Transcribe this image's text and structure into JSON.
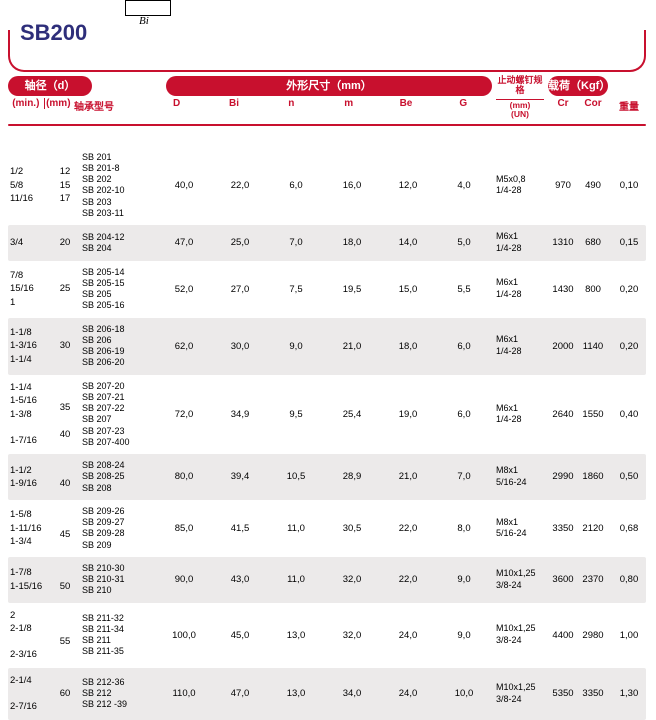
{
  "diagram_label": "Bi",
  "title": "SB200",
  "headers": {
    "shaft": "轴径（d）",
    "shaft_min": "(min.)",
    "shaft_mm": "(mm)",
    "bearing": "轴承型号",
    "outer_dim": "外形尺寸（mm）",
    "dims": [
      "D",
      "Bi",
      "n",
      "m",
      "Be",
      "G"
    ],
    "thread_top": "止动螺钉规格",
    "thread_mm": "(mm)",
    "thread_un": "(UN)",
    "load": "载荷（Kgf）",
    "load_cr": "Cr",
    "load_cor": "Cor",
    "weight": "重量"
  },
  "rows": [
    {
      "shaded": false,
      "min": [
        "1/2",
        "5/8",
        "11/16"
      ],
      "mm": [
        "12",
        "15",
        "17"
      ],
      "bearings": [
        "SB 201",
        "SB 201-8",
        "SB 202",
        "SB 202-10",
        "SB 203",
        "SB 203-11"
      ],
      "D": "40,0",
      "Bi": "22,0",
      "n": "6,0",
      "m": "16,0",
      "Be": "12,0",
      "G": "4,0",
      "thread": [
        "M5x0,8",
        "1/4-28"
      ],
      "Cr": "970",
      "Cor": "490",
      "wt": "0,10"
    },
    {
      "shaded": true,
      "min": [
        "3/4"
      ],
      "mm": [
        "20"
      ],
      "bearings": [
        "SB 204-12",
        "SB 204"
      ],
      "D": "47,0",
      "Bi": "25,0",
      "n": "7,0",
      "m": "18,0",
      "Be": "14,0",
      "G": "5,0",
      "thread": [
        "M6x1",
        "1/4-28"
      ],
      "Cr": "1310",
      "Cor": "680",
      "wt": "0,15"
    },
    {
      "shaded": false,
      "min": [
        "7/8",
        "15/16",
        "1"
      ],
      "mm": [
        "25"
      ],
      "bearings": [
        "SB 205-14",
        "SB 205-15",
        "SB 205",
        "SB 205-16"
      ],
      "D": "52,0",
      "Bi": "27,0",
      "n": "7,5",
      "m": "19,5",
      "Be": "15,0",
      "G": "5,5",
      "thread": [
        "M6x1",
        "1/4-28"
      ],
      "Cr": "1430",
      "Cor": "800",
      "wt": "0,20"
    },
    {
      "shaded": true,
      "min": [
        "1-1/8",
        "1-3/16",
        "1-1/4"
      ],
      "mm": [
        "30"
      ],
      "bearings": [
        "SB 206-18",
        "SB 206",
        "SB 206-19",
        "SB 206-20"
      ],
      "D": "62,0",
      "Bi": "30,0",
      "n": "9,0",
      "m": "21,0",
      "Be": "18,0",
      "G": "6,0",
      "thread": [
        "M6x1",
        "1/4-28"
      ],
      "Cr": "2000",
      "Cor": "1140",
      "wt": "0,20"
    },
    {
      "shaded": false,
      "min": [
        "1-1/4",
        "1-5/16",
        "1-3/8",
        "",
        "1-7/16"
      ],
      "mm": [
        "",
        "35",
        "",
        "40"
      ],
      "bearings": [
        "SB 207-20",
        "SB 207-21",
        "SB 207-22",
        "SB 207",
        "SB 207-23",
        "SB 207-400"
      ],
      "D": "72,0",
      "Bi": "34,9",
      "n": "9,5",
      "m": "25,4",
      "Be": "19,0",
      "G": "6,0",
      "thread": [
        "M6x1",
        "1/4-28"
      ],
      "Cr": "2640",
      "Cor": "1550",
      "wt": "0,40"
    },
    {
      "shaded": true,
      "min": [
        "1-1/2",
        "1-9/16"
      ],
      "mm": [
        "",
        "40"
      ],
      "bearings": [
        "SB 208-24",
        "SB 208-25",
        "SB 208"
      ],
      "D": "80,0",
      "Bi": "39,4",
      "n": "10,5",
      "m": "28,9",
      "Be": "21,0",
      "G": "7,0",
      "thread": [
        "M8x1",
        "5/16-24"
      ],
      "Cr": "2990",
      "Cor": "1860",
      "wt": "0,50"
    },
    {
      "shaded": false,
      "min": [
        "1-5/8",
        "1-11/16",
        "1-3/4"
      ],
      "mm": [
        "",
        "45"
      ],
      "bearings": [
        "SB 209-26",
        "SB 209-27",
        "SB 209-28",
        "SB 209"
      ],
      "D": "85,0",
      "Bi": "41,5",
      "n": "11,0",
      "m": "30,5",
      "Be": "22,0",
      "G": "8,0",
      "thread": [
        "M8x1",
        "5/16-24"
      ],
      "Cr": "3350",
      "Cor": "2120",
      "wt": "0,68"
    },
    {
      "shaded": true,
      "min": [
        "1-7/8",
        "1-15/16"
      ],
      "mm": [
        "",
        "50"
      ],
      "bearings": [
        "SB 210-30",
        "SB 210-31",
        "SB 210"
      ],
      "D": "90,0",
      "Bi": "43,0",
      "n": "11,0",
      "m": "32,0",
      "Be": "22,0",
      "G": "9,0",
      "thread": [
        "M10x1,25",
        "3/8-24"
      ],
      "Cr": "3600",
      "Cor": "2370",
      "wt": "0,80"
    },
    {
      "shaded": false,
      "min": [
        "2",
        "2-1/8",
        "",
        "2-3/16"
      ],
      "mm": [
        "",
        "55"
      ],
      "bearings": [
        "SB 211-32",
        "SB 211-34",
        "SB 211",
        "SB 211-35"
      ],
      "D": "100,0",
      "Bi": "45,0",
      "n": "13,0",
      "m": "32,0",
      "Be": "24,0",
      "G": "9,0",
      "thread": [
        "M10x1,25",
        "3/8-24"
      ],
      "Cr": "4400",
      "Cor": "2980",
      "wt": "1,00"
    },
    {
      "shaded": true,
      "min": [
        "2-1/4",
        "",
        "2-7/16"
      ],
      "mm": [
        "60"
      ],
      "bearings": [
        "SB 212-36",
        "SB 212",
        "SB 212 -39"
      ],
      "D": "110,0",
      "Bi": "47,0",
      "n": "13,0",
      "m": "34,0",
      "Be": "24,0",
      "G": "10,0",
      "thread": [
        "M10x1,25",
        "3/8-24"
      ],
      "Cr": "5350",
      "Cor": "3350",
      "wt": "1,30"
    }
  ]
}
